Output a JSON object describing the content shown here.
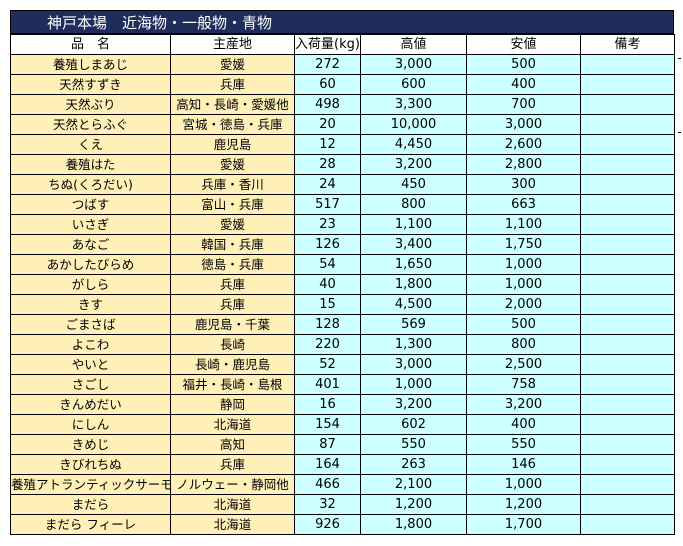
{
  "title": "神戸本場　近海物・一般物・青物",
  "headers": [
    "品　名",
    "主産地",
    "入荷量(kg)",
    "高値",
    "安値",
    "備考"
  ],
  "rows": [
    [
      "養殖しまあじ",
      "愛媛",
      "272",
      "3,000",
      "500",
      ""
    ],
    [
      "天然すずき",
      "兵庫",
      "60",
      "600",
      "400",
      ""
    ],
    [
      "天然ぶり",
      "高知・長崎・愛媛他",
      "498",
      "3,300",
      "700",
      ""
    ],
    [
      "天然とらふぐ",
      "宮城・徳島・兵庫",
      "20",
      "10,000",
      "3,000",
      ""
    ],
    [
      "くえ",
      "鹿児島",
      "12",
      "4,450",
      "2,600",
      ""
    ],
    [
      "養殖はた",
      "愛媛",
      "28",
      "3,200",
      "2,800",
      ""
    ],
    [
      "ちぬ(くろだい)",
      "兵庫・香川",
      "24",
      "450",
      "300",
      ""
    ],
    [
      "つばす",
      "富山・兵庫",
      "517",
      "800",
      "663",
      ""
    ],
    [
      "いさぎ",
      "愛媛",
      "23",
      "1,100",
      "1,100",
      ""
    ],
    [
      "あなご",
      "韓国・兵庫",
      "126",
      "3,400",
      "1,750",
      ""
    ],
    [
      "あかしたびらめ",
      "徳島・兵庫",
      "54",
      "1,650",
      "1,000",
      ""
    ],
    [
      "がしら",
      "兵庫",
      "40",
      "1,800",
      "1,000",
      ""
    ],
    [
      "きす",
      "兵庫",
      "15",
      "4,500",
      "2,000",
      ""
    ],
    [
      "ごまさば",
      "鹿児島・千葉",
      "128",
      "569",
      "500",
      ""
    ],
    [
      "よこわ",
      "長崎",
      "220",
      "1,300",
      "800",
      ""
    ],
    [
      "やいと",
      "長崎・鹿児島",
      "52",
      "3,000",
      "2,500",
      ""
    ],
    [
      "さごし",
      "福井・長崎・島根",
      "401",
      "1,000",
      "758",
      ""
    ],
    [
      "きんめだい",
      "静岡",
      "16",
      "3,200",
      "3,200",
      ""
    ],
    [
      "にしん",
      "北海道",
      "154",
      "602",
      "400",
      ""
    ],
    [
      "きめじ",
      "高知",
      "87",
      "550",
      "550",
      ""
    ],
    [
      "きびれちぬ",
      "兵庫",
      "164",
      "263",
      "146",
      ""
    ],
    [
      "養殖アトランティックサーモン",
      "ノルウェー・静岡他",
      "466",
      "2,100",
      "1,000",
      ""
    ],
    [
      "まだら",
      "北海道",
      "32",
      "1,200",
      "1,200",
      ""
    ],
    [
      "まだら フィーレ",
      "北海道",
      "926",
      "1,800",
      "1,700",
      ""
    ]
  ]
}
